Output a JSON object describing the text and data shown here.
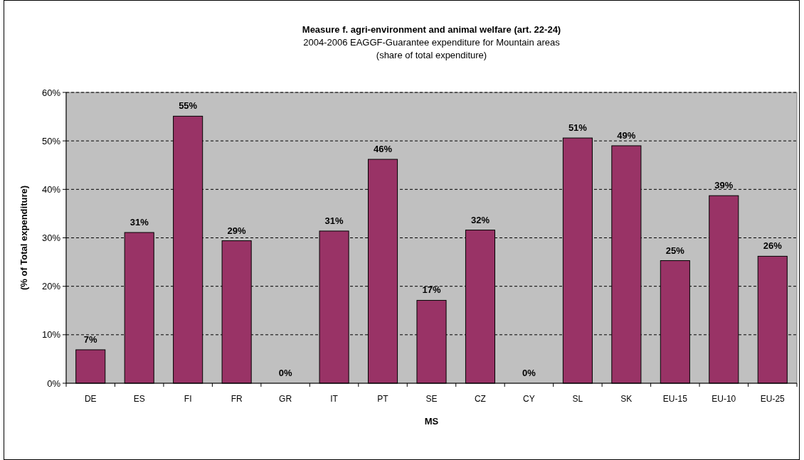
{
  "chart_data": {
    "type": "bar",
    "title": "Measure f. agri-environment and animal welfare (art. 22-24)",
    "subtitle": "2004-2006 EAGGF-Guarantee expenditure for Mountain areas\n(share  of total expenditure)",
    "xlabel": "MS",
    "ylabel": "(% of Total expenditure)",
    "categories": [
      "DE",
      "ES",
      "FI",
      "FR",
      "GR",
      "IT",
      "PT",
      "SE",
      "CZ",
      "CY",
      "SL",
      "SK",
      "EU-15",
      "EU-10",
      "EU-25"
    ],
    "values": [
      6.9,
      31.1,
      55.1,
      29.4,
      0,
      31.4,
      46.2,
      17.1,
      31.6,
      0,
      50.6,
      49.0,
      25.3,
      38.7,
      26.2
    ],
    "value_labels": [
      "7%",
      "31%",
      "55%",
      "29%",
      "0%",
      "31%",
      "46%",
      "17%",
      "32%",
      "0%",
      "51%",
      "49%",
      "25%",
      "39%",
      "26%"
    ],
    "color": "#993366",
    "ylim": [
      0,
      60
    ],
    "yticks": [
      {
        "value": 0,
        "label": "0%"
      },
      {
        "value": 10,
        "label": "10%"
      },
      {
        "value": 20,
        "label": "20%"
      },
      {
        "value": 30,
        "label": "30%"
      },
      {
        "value": 40,
        "label": "40%"
      },
      {
        "value": 50,
        "label": "50%"
      },
      {
        "value": 60,
        "label": "60%"
      }
    ],
    "grid": "y"
  }
}
